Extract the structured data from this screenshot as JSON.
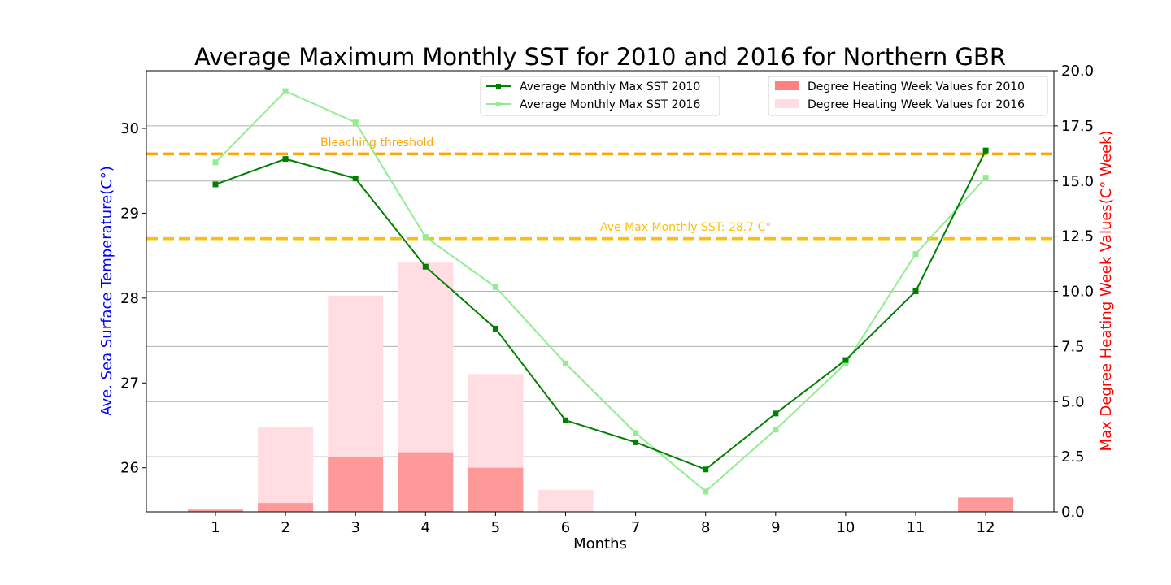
{
  "chart_data": {
    "type": "bar+line",
    "title": "Average Maximum Monthly SST for 2010 and 2016 for Northern GBR",
    "xlabel": "Months",
    "ylabel_left": "Ave. Sea Surface Temperature(C°)",
    "ylabel_right": "Max Degree Heating Week Values(C° Week)",
    "categories": [
      "1",
      "2",
      "3",
      "4",
      "5",
      "6",
      "7",
      "8",
      "9",
      "10",
      "11",
      "12"
    ],
    "y_left_range": [
      25.48,
      30.68
    ],
    "y_left_ticks": [
      "26",
      "27",
      "28",
      "29",
      "30"
    ],
    "y_right_range": [
      0,
      20
    ],
    "y_right_ticks": [
      "0.0",
      "2.5",
      "5.0",
      "7.5",
      "10.0",
      "12.5",
      "15.0",
      "17.5",
      "20.0"
    ],
    "grid": "horizontal, right axis",
    "lines": [
      {
        "name": "Average Monthly Max SST 2010",
        "color": "#008000",
        "values": [
          29.34,
          29.64,
          29.41,
          28.37,
          27.64,
          26.56,
          26.3,
          25.98,
          26.64,
          27.27,
          28.08,
          29.74
        ]
      },
      {
        "name": "Average Monthly Max SST 2016",
        "color": "#90ee90",
        "values": [
          29.6,
          30.44,
          30.07,
          28.72,
          28.13,
          27.23,
          26.41,
          25.72,
          26.45,
          27.23,
          28.52,
          29.42
        ]
      }
    ],
    "bars": [
      {
        "name": "Degree Heating Week Values for 2010",
        "color": "#ff8080",
        "values": [
          0.1,
          0.4,
          2.5,
          2.7,
          2.0,
          0,
          0,
          0,
          0,
          0,
          0,
          0.65
        ]
      },
      {
        "name": "Degree Heating Week Values for 2016",
        "color": "#ffdde2",
        "values": [
          0.1,
          3.85,
          9.8,
          11.3,
          6.25,
          1.0,
          0,
          0,
          0,
          0,
          0,
          0.65
        ]
      }
    ],
    "reference_lines": [
      {
        "label": "Bleaching threshold",
        "value": 29.7,
        "color": "#ffa500"
      },
      {
        "label": "Ave Max Monthly SST: 28.7 C°",
        "value": 28.7,
        "color": "#ffc000"
      }
    ],
    "legend_placement": "top-right, two boxes"
  }
}
